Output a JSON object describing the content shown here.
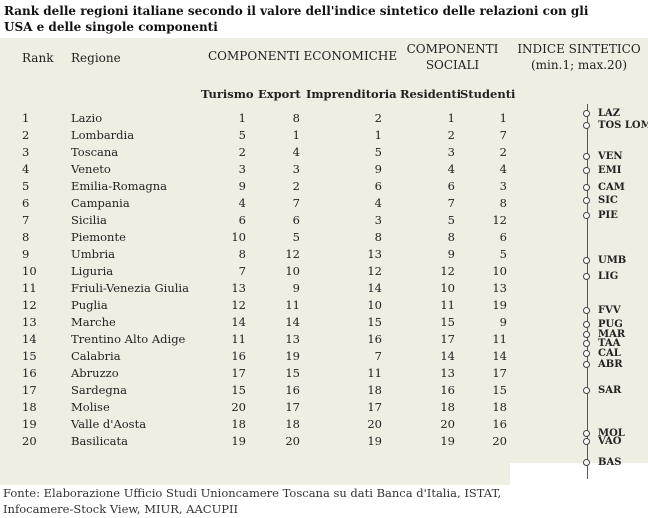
{
  "title": "Rank delle regioni italiane secondo il valore dell'indice sintetico delle relazioni con gli USA e delle singole componenti",
  "headers": {
    "rank": "Rank",
    "regione": "Regione",
    "economiche": "COMPONENTI ECONOMICHE",
    "sociali_1": "COMPONENTI",
    "sociali_2": "SOCIALI",
    "indice_1": "INDICE SINTETICO",
    "indice_2": "(min.1; max.20)",
    "turismo": "Turismo",
    "export": "Export",
    "imprenditoria": "Imprenditoria",
    "residenti": "Residenti",
    "studenti": "Studenti"
  },
  "rows": [
    {
      "rank": "1",
      "regione": "Lazio",
      "turismo": "1",
      "export": "8",
      "impr": "2",
      "res": "1",
      "stud": "1"
    },
    {
      "rank": "2",
      "regione": "Lombardia",
      "turismo": "5",
      "export": "1",
      "impr": "1",
      "res": "2",
      "stud": "7"
    },
    {
      "rank": "3",
      "regione": "Toscana",
      "turismo": "2",
      "export": "4",
      "impr": "5",
      "res": "3",
      "stud": "2"
    },
    {
      "rank": "4",
      "regione": "Veneto",
      "turismo": "3",
      "export": "3",
      "impr": "9",
      "res": "4",
      "stud": "4"
    },
    {
      "rank": "5",
      "regione": "Emilia-Romagna",
      "turismo": "9",
      "export": "2",
      "impr": "6",
      "res": "6",
      "stud": "3"
    },
    {
      "rank": "6",
      "regione": "Campania",
      "turismo": "4",
      "export": "7",
      "impr": "4",
      "res": "7",
      "stud": "8"
    },
    {
      "rank": "7",
      "regione": "Sicilia",
      "turismo": "6",
      "export": "6",
      "impr": "3",
      "res": "5",
      "stud": "12"
    },
    {
      "rank": "8",
      "regione": "Piemonte",
      "turismo": "10",
      "export": "5",
      "impr": "8",
      "res": "8",
      "stud": "6"
    },
    {
      "rank": "9",
      "regione": "Umbria",
      "turismo": "8",
      "export": "12",
      "impr": "13",
      "res": "9",
      "stud": "5"
    },
    {
      "rank": "10",
      "regione": "Liguria",
      "turismo": "7",
      "export": "10",
      "impr": "12",
      "res": "12",
      "stud": "10"
    },
    {
      "rank": "11",
      "regione": "Friuli-Venezia Giulia",
      "turismo": "13",
      "export": "9",
      "impr": "14",
      "res": "10",
      "stud": "13"
    },
    {
      "rank": "12",
      "regione": "Puglia",
      "turismo": "12",
      "export": "11",
      "impr": "10",
      "res": "11",
      "stud": "19"
    },
    {
      "rank": "13",
      "regione": "Marche",
      "turismo": "14",
      "export": "14",
      "impr": "15",
      "res": "15",
      "stud": "9"
    },
    {
      "rank": "14",
      "regione": "Trentino Alto Adige",
      "turismo": "11",
      "export": "13",
      "impr": "16",
      "res": "17",
      "stud": "11"
    },
    {
      "rank": "15",
      "regione": "Calabria",
      "turismo": "16",
      "export": "19",
      "impr": "7",
      "res": "14",
      "stud": "14"
    },
    {
      "rank": "16",
      "regione": "Abruzzo",
      "turismo": "17",
      "export": "15",
      "impr": "11",
      "res": "13",
      "stud": "17"
    },
    {
      "rank": "17",
      "regione": "Sardegna",
      "turismo": "15",
      "export": "16",
      "impr": "18",
      "res": "16",
      "stud": "15"
    },
    {
      "rank": "18",
      "regione": "Molise",
      "turismo": "20",
      "export": "17",
      "impr": "17",
      "res": "18",
      "stud": "18"
    },
    {
      "rank": "19",
      "regione": "Valle d'Aosta",
      "turismo": "18",
      "export": "18",
      "impr": "20",
      "res": "20",
      "stud": "16"
    },
    {
      "rank": "20",
      "regione": "Basilicata",
      "turismo": "19",
      "export": "20",
      "impr": "19",
      "res": "19",
      "stud": "20"
    }
  ],
  "index_scale": [
    {
      "label": "LAZ",
      "value": 1.0
    },
    {
      "label": "TOS LOM",
      "value": 1.7
    },
    {
      "label": "VEN",
      "value": 3.5
    },
    {
      "label": "EMI",
      "value": 4.3
    },
    {
      "label": "CAM",
      "value": 5.3
    },
    {
      "label": "SIC",
      "value": 6.0
    },
    {
      "label": "PIE",
      "value": 6.9
    },
    {
      "label": "UMB",
      "value": 9.5
    },
    {
      "label": "LIG",
      "value": 10.4
    },
    {
      "label": "FVV",
      "value": 12.4
    },
    {
      "label": "PUG",
      "value": 13.2
    },
    {
      "label": "MAR",
      "value": 13.8
    },
    {
      "label": "TAA",
      "value": 14.3
    },
    {
      "label": "CAL",
      "value": 14.9
    },
    {
      "label": "ABR",
      "value": 15.5
    },
    {
      "label": "SAR",
      "value": 17.0
    },
    {
      "label": "MOL",
      "value": 19.5
    },
    {
      "label": "VAO",
      "value": 19.95
    },
    {
      "label": "BAS",
      "value": 21.2
    }
  ],
  "source": "Fonte: Elaborazione Ufficio Studi Unioncamere Toscana su dati Banca d'Italia, ISTAT, Infocamere-Stock View, MIUR, AACUPII"
}
